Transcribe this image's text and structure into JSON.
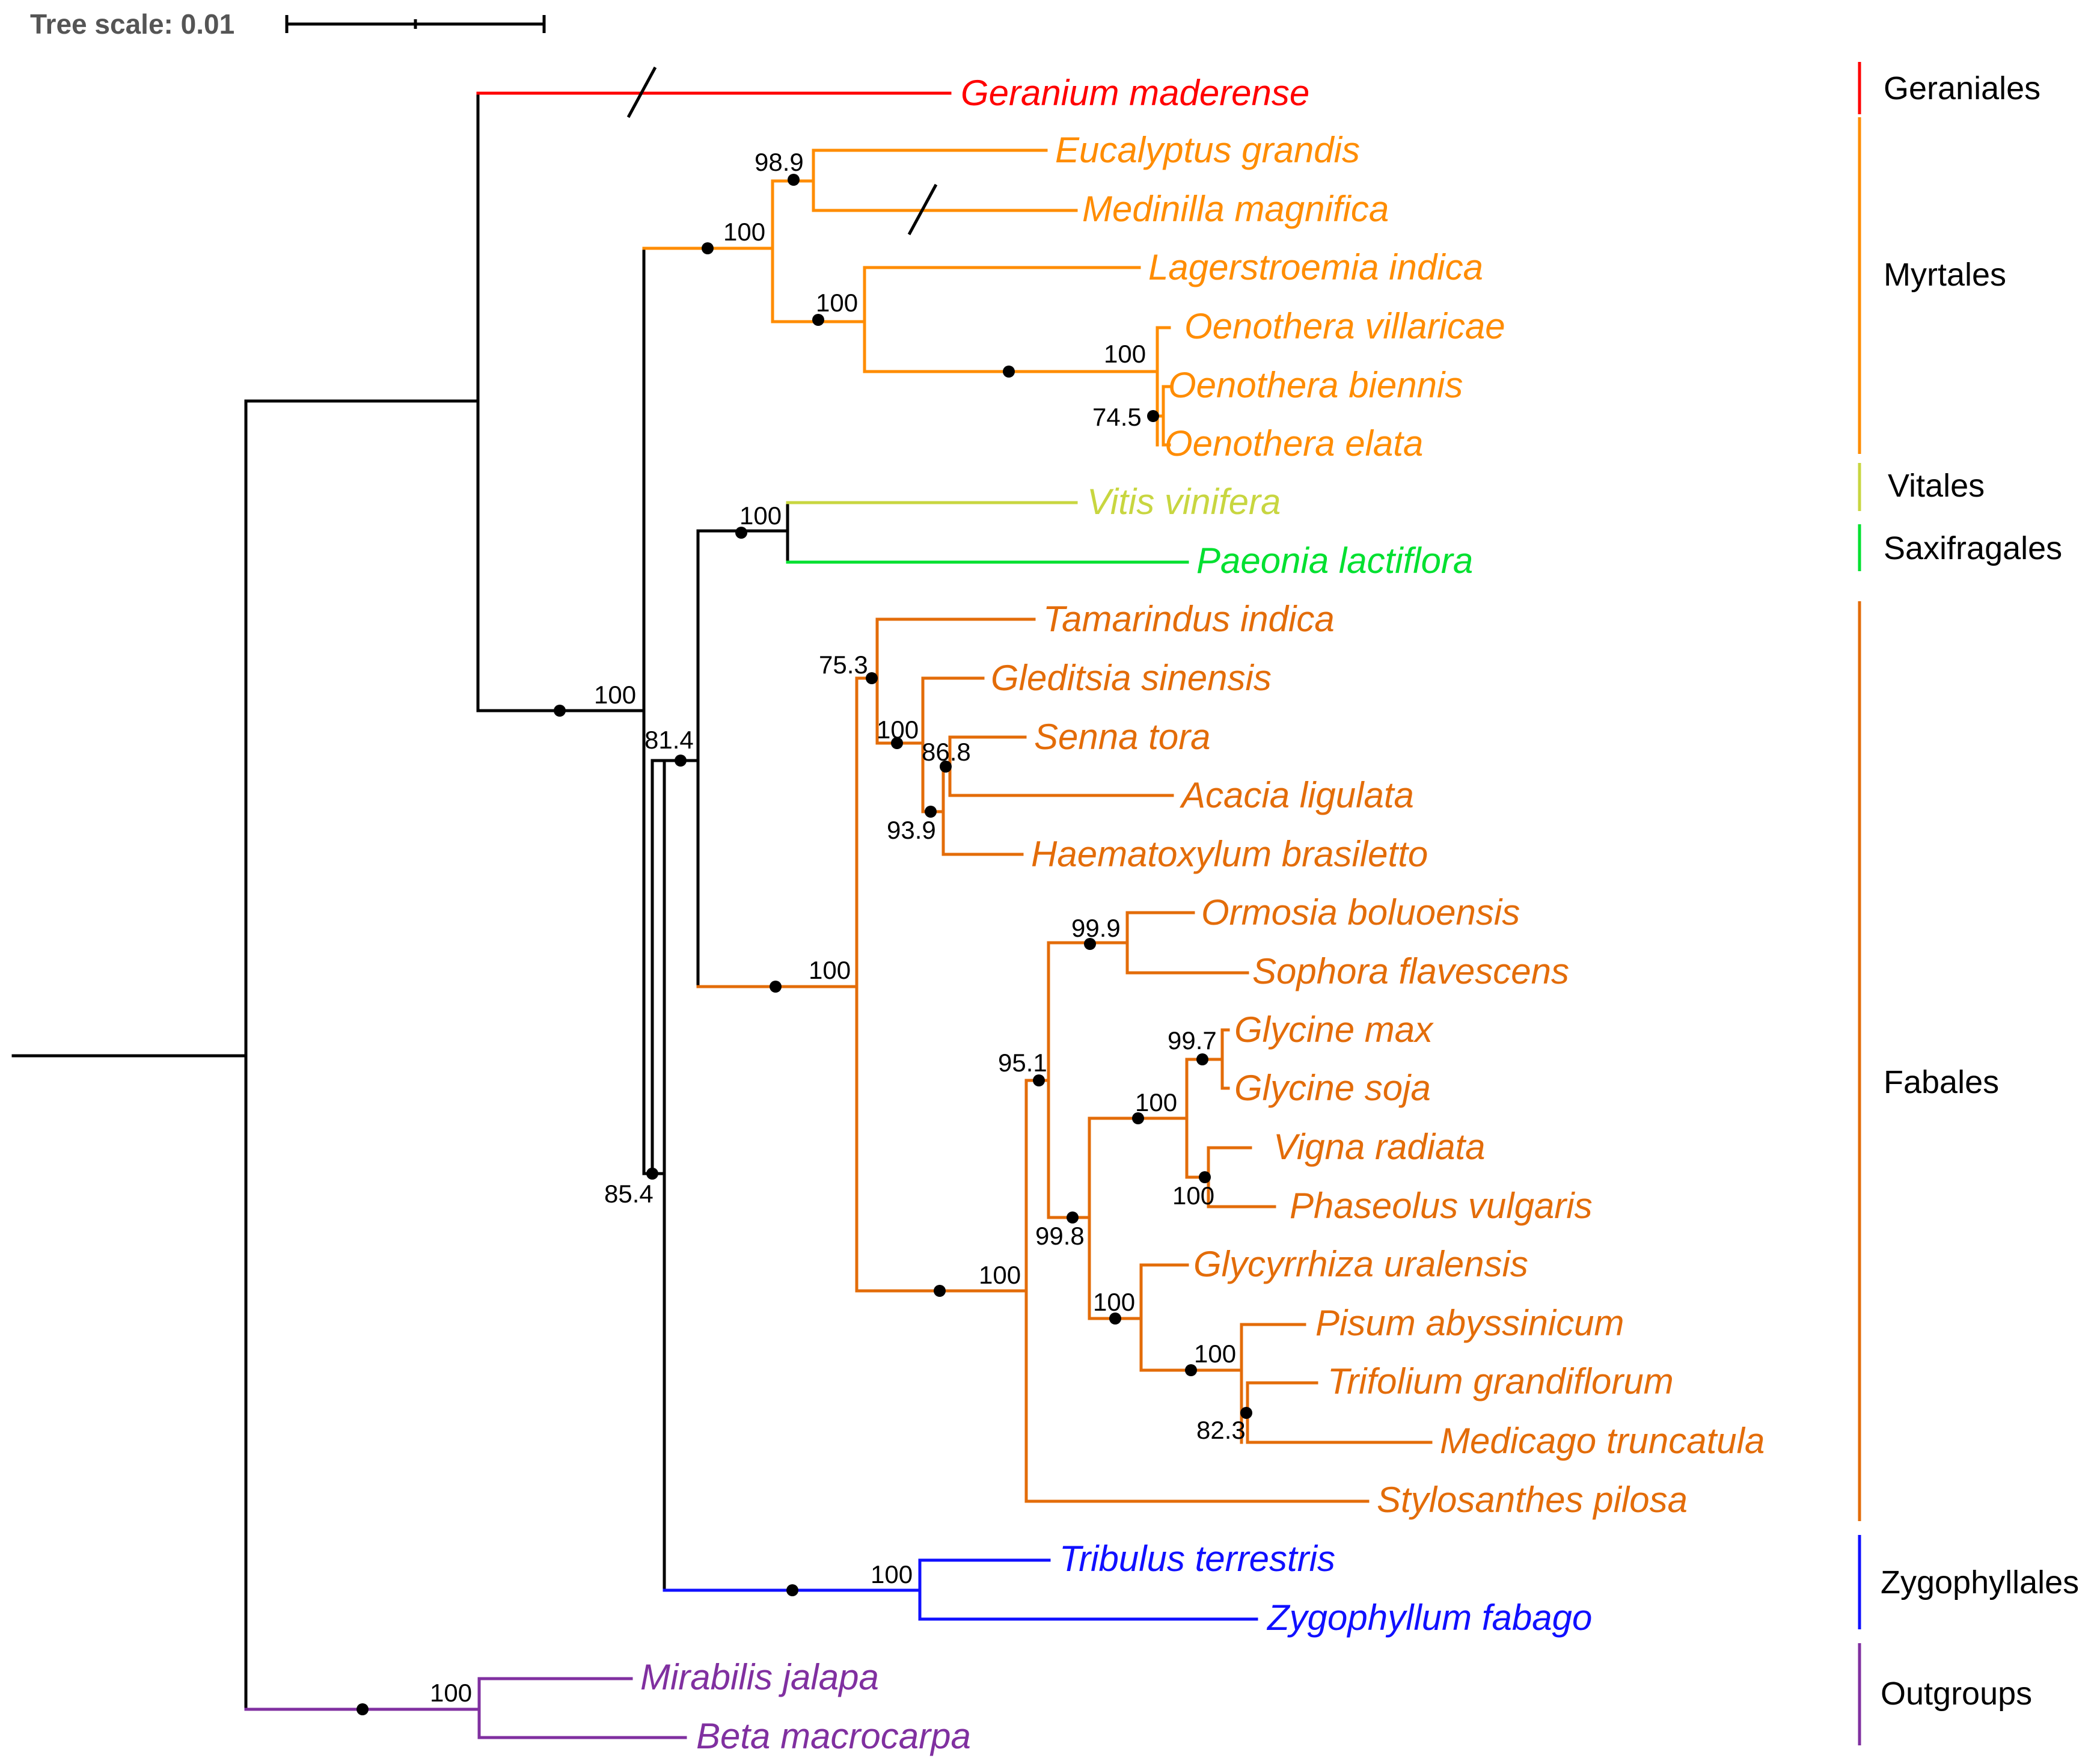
{
  "scale": {
    "label": "Tree scale: 0.01"
  },
  "colors": {
    "base": "#000000",
    "geraniales": "#ff0000",
    "myrtales": "#ff8c00",
    "vitales": "#c8d640",
    "saxifragales": "#00e030",
    "fabales": "#e36c09",
    "zygophyllales": "#1010ff",
    "outgroups": "#8030a0"
  },
  "taxa": {
    "geranium": "Geranium maderense",
    "eucalyptus": "Eucalyptus grandis",
    "medinilla": "Medinilla magnifica",
    "lagerstroemia": "Lagerstroemia indica",
    "oen_villaricae": "Oenothera villaricae",
    "oen_biennis": "Oenothera biennis",
    "oen_elata": "Oenothera elata",
    "vitis": "Vitis vinifera",
    "paeonia": "Paeonia lactiflora",
    "tamarindus": "Tamarindus indica",
    "gleditsia": "Gleditsia sinensis",
    "senna": "Senna tora",
    "acacia": "Acacia ligulata",
    "haematoxylum": "Haematoxylum brasiletto",
    "ormosia": "Ormosia boluoensis",
    "sophora": "Sophora flavescens",
    "glycine_max": "Glycine max",
    "glycine_soja": "Glycine soja",
    "vigna": "Vigna radiata",
    "phaseolus": "Phaseolus vulgaris",
    "glycyrrhiza": "Glycyrrhiza uralensis",
    "pisum": "Pisum abyssinicum",
    "trifolium": "Trifolium grandiflorum",
    "medicago": "Medicago truncatula",
    "stylosanthes": "Stylosanthes pilosa",
    "tribulus": "Tribulus terrestris",
    "zygophyllum": "Zygophyllum fabago",
    "mirabilis": "Mirabilis jalapa",
    "beta": "Beta macrocarpa"
  },
  "support": {
    "eucalyptus_medinilla": "98.9",
    "myrtales_crown": "100",
    "lagerstroemia_oenothera": "100",
    "oenothera_crown": "100",
    "oenothera_biennis_elata": "74.5",
    "vitis_paeonia": "100",
    "ingroup_main": "100",
    "rosids_81": "81.4",
    "rosids_85": "85.4",
    "fabales_crown": "100",
    "tamarindus_group": "75.3",
    "gleditsia_group": "100",
    "senna_acacia": "86.8",
    "senna_haematoxylum": "93.9",
    "ormosia_sophora": "99.9",
    "papilionoid_crown": "100",
    "papilionoid_95": "95.1",
    "papilionoid_99": "99.8",
    "glycine_pair": "99.7",
    "phaseoloid": "100",
    "vigna_phaseolus": "100",
    "glycyrrhiza_group": "100",
    "pisum_group": "100",
    "trifolium_medicago": "82.3",
    "zygophyllales": "100",
    "outgroups": "100"
  },
  "orders": {
    "geraniales": "Geraniales",
    "myrtales": "Myrtales",
    "vitales": "Vitales",
    "saxifragales": "Saxifragales",
    "fabales": "Fabales",
    "zygophyllales": "Zygophyllales",
    "outgroups": "Outgroups"
  }
}
